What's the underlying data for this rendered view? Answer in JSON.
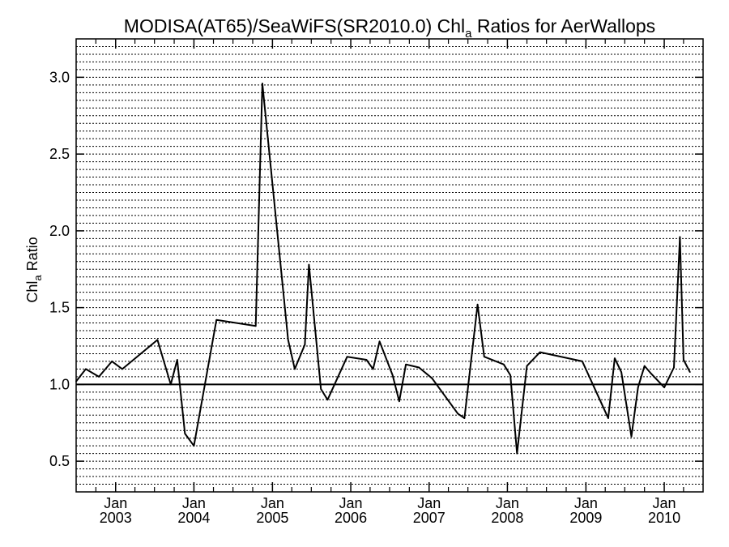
{
  "chart_data": {
    "type": "line",
    "title": {
      "pre": "MODISA(AT65)/SeaWiFS(SR2010.0)  Chl",
      "sub": "a",
      "post": " Ratios for AerWallops"
    },
    "ylabel": {
      "pre": "Chl",
      "sub": "a",
      "post": " Ratio"
    },
    "xlabel": "",
    "xlim": [
      "2002-07-01",
      "2010-07-01"
    ],
    "ylim": [
      0.3,
      3.25
    ],
    "yticks": [
      0.5,
      1.0,
      1.5,
      2.0,
      2.5,
      3.0
    ],
    "ytick_labels": [
      "0.5",
      "1.0",
      "1.5",
      "2.0",
      "2.5",
      "3.0"
    ],
    "xticks": [
      {
        "date": "2003-01-01",
        "month": "Jan",
        "year": "2003"
      },
      {
        "date": "2004-01-01",
        "month": "Jan",
        "year": "2004"
      },
      {
        "date": "2005-01-01",
        "month": "Jan",
        "year": "2005"
      },
      {
        "date": "2006-01-01",
        "month": "Jan",
        "year": "2006"
      },
      {
        "date": "2007-01-01",
        "month": "Jan",
        "year": "2007"
      },
      {
        "date": "2008-01-01",
        "month": "Jan",
        "year": "2008"
      },
      {
        "date": "2009-01-01",
        "month": "Jan",
        "year": "2009"
      },
      {
        "date": "2010-01-01",
        "month": "Jan",
        "year": "2010"
      }
    ],
    "grid": "horizontal dotted",
    "reference_line": 1.0,
    "series": [
      {
        "color": "#000000",
        "points": [
          [
            "2002-07-01",
            1.02
          ],
          [
            "2002-08-15",
            1.1
          ],
          [
            "2002-10-15",
            1.05
          ],
          [
            "2002-12-15",
            1.15
          ],
          [
            "2003-02-01",
            1.1
          ],
          [
            "2003-07-15",
            1.29
          ],
          [
            "2003-09-15",
            1.0
          ],
          [
            "2003-10-15",
            1.16
          ],
          [
            "2003-11-20",
            0.68
          ],
          [
            "2004-01-01",
            0.6
          ],
          [
            "2004-04-15",
            1.42
          ],
          [
            "2004-10-15",
            1.38
          ],
          [
            "2004-11-15",
            2.96
          ],
          [
            "2005-03-15",
            1.29
          ],
          [
            "2005-04-15",
            1.1
          ],
          [
            "2005-06-01",
            1.26
          ],
          [
            "2005-06-20",
            1.78
          ],
          [
            "2005-08-15",
            0.97
          ],
          [
            "2005-09-15",
            0.9
          ],
          [
            "2005-12-15",
            1.18
          ],
          [
            "2006-03-15",
            1.16
          ],
          [
            "2006-04-15",
            1.1
          ],
          [
            "2006-05-15",
            1.28
          ],
          [
            "2006-07-15",
            1.06
          ],
          [
            "2006-08-15",
            0.89
          ],
          [
            "2006-09-15",
            1.13
          ],
          [
            "2006-11-15",
            1.11
          ],
          [
            "2007-01-15",
            1.04
          ],
          [
            "2007-05-15",
            0.81
          ],
          [
            "2007-06-15",
            0.78
          ],
          [
            "2007-08-15",
            1.52
          ],
          [
            "2007-09-15",
            1.18
          ],
          [
            "2007-12-15",
            1.13
          ],
          [
            "2008-01-15",
            1.06
          ],
          [
            "2008-02-15",
            0.55
          ],
          [
            "2008-04-01",
            1.12
          ],
          [
            "2008-06-01",
            1.21
          ],
          [
            "2008-12-15",
            1.15
          ],
          [
            "2009-04-15",
            0.78
          ],
          [
            "2009-05-15",
            1.17
          ],
          [
            "2009-06-15",
            1.08
          ],
          [
            "2009-08-01",
            0.66
          ],
          [
            "2009-09-01",
            0.98
          ],
          [
            "2009-10-01",
            1.12
          ],
          [
            "2009-11-01",
            1.07
          ],
          [
            "2010-01-01",
            0.98
          ],
          [
            "2010-02-15",
            1.11
          ],
          [
            "2010-03-15",
            1.96
          ],
          [
            "2010-04-01",
            1.16
          ],
          [
            "2010-05-01",
            1.08
          ]
        ]
      }
    ]
  }
}
